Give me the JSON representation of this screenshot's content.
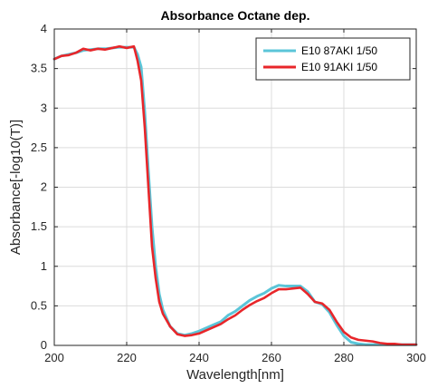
{
  "chart_data": {
    "type": "line",
    "title": "Absorbance Octane dep.",
    "xlabel": "Wavelength[nm]",
    "ylabel": "Absorbance[-log10(T)]",
    "xlim": [
      200,
      300
    ],
    "ylim": [
      0,
      4
    ],
    "xticks": [
      "200",
      "220",
      "240",
      "260",
      "280",
      "300"
    ],
    "yticks": [
      "0",
      "0.5",
      "1",
      "1.5",
      "2",
      "2.5",
      "3",
      "3.5",
      "4"
    ],
    "grid": true,
    "legend_position": "top-right",
    "x": [
      200,
      202,
      204,
      206,
      208,
      210,
      212,
      214,
      216,
      218,
      220,
      222,
      223,
      224,
      225,
      226,
      227,
      228,
      229,
      230,
      232,
      234,
      236,
      238,
      240,
      242,
      244,
      246,
      248,
      250,
      252,
      254,
      256,
      258,
      260,
      262,
      264,
      266,
      268,
      270,
      272,
      274,
      276,
      278,
      280,
      282,
      284,
      286,
      288,
      290,
      292,
      294,
      296,
      298,
      300
    ],
    "series": [
      {
        "name": "E10 87AKI 1/50",
        "color": "#5bc5d8",
        "values": [
          3.62,
          3.66,
          3.68,
          3.7,
          3.73,
          3.74,
          3.75,
          3.75,
          3.76,
          3.77,
          3.77,
          3.77,
          3.68,
          3.52,
          2.95,
          2.2,
          1.5,
          1.0,
          0.65,
          0.45,
          0.24,
          0.15,
          0.13,
          0.15,
          0.18,
          0.22,
          0.26,
          0.3,
          0.38,
          0.43,
          0.5,
          0.57,
          0.62,
          0.66,
          0.72,
          0.76,
          0.75,
          0.75,
          0.75,
          0.68,
          0.55,
          0.52,
          0.42,
          0.26,
          0.12,
          0.04,
          0.02,
          0.01,
          0.01,
          0.01,
          0.01,
          0.01,
          0.01,
          0.01,
          0.01
        ]
      },
      {
        "name": "E10 91AKI 1/50",
        "color": "#e8262a",
        "values": [
          3.62,
          3.66,
          3.67,
          3.7,
          3.75,
          3.73,
          3.75,
          3.74,
          3.76,
          3.78,
          3.76,
          3.78,
          3.6,
          3.35,
          2.75,
          2.0,
          1.25,
          0.85,
          0.55,
          0.4,
          0.24,
          0.14,
          0.12,
          0.13,
          0.15,
          0.19,
          0.23,
          0.27,
          0.33,
          0.38,
          0.45,
          0.51,
          0.56,
          0.6,
          0.66,
          0.71,
          0.71,
          0.72,
          0.73,
          0.65,
          0.55,
          0.53,
          0.45,
          0.3,
          0.17,
          0.1,
          0.07,
          0.06,
          0.05,
          0.03,
          0.02,
          0.02,
          0.01,
          0.01,
          0.01
        ]
      }
    ]
  }
}
